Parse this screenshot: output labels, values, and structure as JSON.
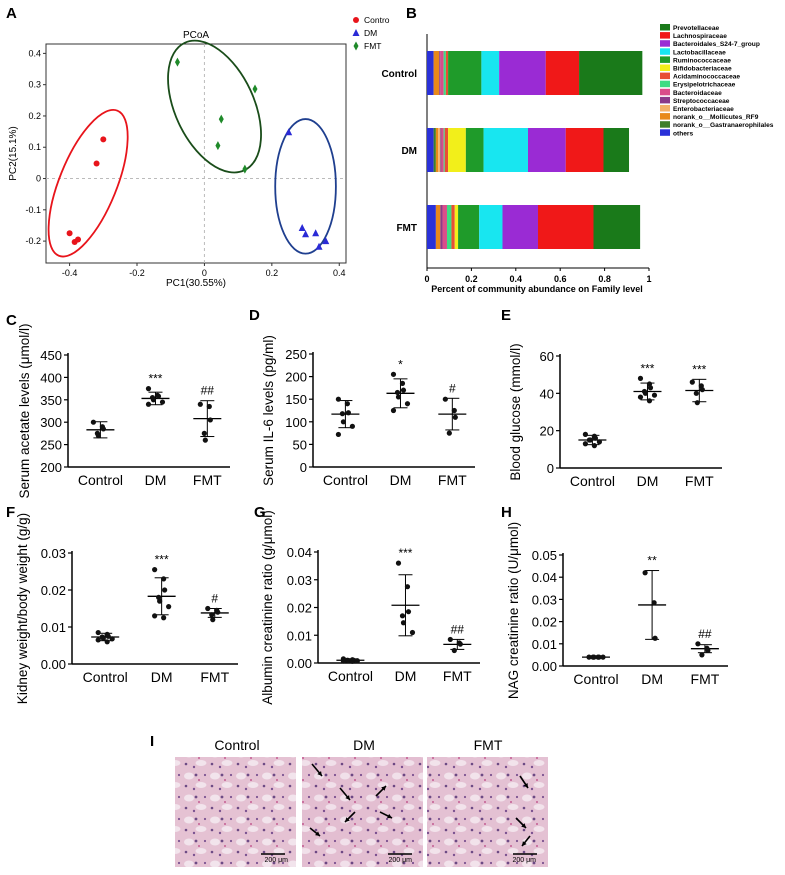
{
  "figure": {
    "panel_letters": [
      "A",
      "B",
      "C",
      "D",
      "E",
      "F",
      "G",
      "H",
      "I"
    ]
  },
  "colors": {
    "control": "#e8141b",
    "dm": "#2a2ad6",
    "fmt": "#1f8a2a",
    "ellipse_control": "#e8141b",
    "ellipse_dm": "#1f3f8f",
    "ellipse_fmt": "#1a4d1a",
    "point": "#111111"
  },
  "chart_data": [
    {
      "id": "A",
      "type": "scatter",
      "title": "PCoA",
      "xlabel": "PC1(30.55%)",
      "ylabel": "PC2(15.1%)",
      "xlim": [
        -0.47,
        0.42
      ],
      "ylim": [
        -0.27,
        0.43
      ],
      "xticks": [
        -0.4,
        -0.2,
        0,
        0.2,
        0.4
      ],
      "xtick_labels": [
        "-0.4",
        "-0.2",
        "0",
        "0.2",
        "0.4"
      ],
      "yticks": [
        -0.2,
        -0.1,
        0,
        0.1,
        0.2,
        0.3,
        0.4
      ],
      "ytick_labels": [
        "-0.2",
        "-0.1",
        "0",
        "0.1",
        "0.2",
        "0.3",
        "0.4"
      ],
      "legend": [
        {
          "name": "Contro",
          "marker": "circle",
          "color": "#e8141b"
        },
        {
          "name": "DM",
          "marker": "triangle",
          "color": "#2a2ad6"
        },
        {
          "name": "FMT",
          "marker": "diamond",
          "color": "#1f8a2a"
        }
      ],
      "series": [
        {
          "name": "Control",
          "marker": "circle",
          "color": "#e8141b",
          "points": [
            [
              -0.3,
              0.125
            ],
            [
              -0.32,
              0.048
            ],
            [
              -0.4,
              -0.175
            ],
            [
              -0.385,
              -0.203
            ],
            [
              -0.375,
              -0.195
            ]
          ],
          "ellipse": {
            "cx": -0.345,
            "cy": -0.015,
            "rx": 0.085,
            "ry": 0.25,
            "angle": 22
          }
        },
        {
          "name": "DM",
          "marker": "triangle",
          "color": "#2a2ad6",
          "points": [
            [
              0.25,
              0.148
            ],
            [
              0.29,
              -0.158
            ],
            [
              0.33,
              -0.175
            ],
            [
              0.36,
              -0.2
            ],
            [
              0.34,
              -0.218
            ],
            [
              0.3,
              -0.178
            ]
          ],
          "ellipse": {
            "cx": 0.3,
            "cy": -0.025,
            "rx": 0.09,
            "ry": 0.215,
            "angle": 0
          }
        },
        {
          "name": "FMT",
          "marker": "diamond",
          "color": "#1f8a2a",
          "points": [
            [
              -0.08,
              0.372
            ],
            [
              0.15,
              0.286
            ],
            [
              0.05,
              0.19
            ],
            [
              0.04,
              0.105
            ],
            [
              0.12,
              0.03
            ]
          ],
          "ellipse": {
            "cx": 0.03,
            "cy": 0.23,
            "rx": 0.117,
            "ry": 0.225,
            "angle": -25
          }
        }
      ]
    },
    {
      "id": "B",
      "type": "bar",
      "orientation": "horizontal",
      "stacked": true,
      "xlabel": "Percent of community abundance on Family level",
      "xlim": [
        0,
        1
      ],
      "xticks": [
        0,
        0.2,
        0.4,
        0.6,
        0.8,
        1
      ],
      "xtick_labels": [
        "0",
        "0.2",
        "0.4",
        "0.6",
        "0.8",
        "1"
      ],
      "categories": [
        "Control",
        "DM",
        "FMT"
      ],
      "series": [
        {
          "name": "others",
          "color": "#2a31d8",
          "values": [
            0.03,
            0.03,
            0.04
          ]
        },
        {
          "name": "norank_o__Gastranaerophilales",
          "color": "#3f7f2a",
          "values": [
            0,
            0.01,
            0
          ]
        },
        {
          "name": "norank_o__Mollicutes_RF9",
          "color": "#e8891a",
          "values": [
            0.025,
            0.01,
            0.02
          ]
        },
        {
          "name": "Enterobacteriaceae",
          "color": "#f4b26a",
          "values": [
            0,
            0.01,
            0
          ]
        },
        {
          "name": "Streptococcaceae",
          "color": "#8b3a8a",
          "values": [
            0.005,
            0.005,
            0.01
          ]
        },
        {
          "name": "Bacteroidaceae",
          "color": "#d94d8a",
          "values": [
            0.015,
            0.01,
            0.02
          ]
        },
        {
          "name": "Erysipelotrichaceae",
          "color": "#3ddc84",
          "values": [
            0.01,
            0.005,
            0.02
          ]
        },
        {
          "name": "Acidaminococcaceae",
          "color": "#e84f34",
          "values": [
            0.01,
            0.015,
            0.015
          ]
        },
        {
          "name": "Bifidobacteriaceae",
          "color": "#f2ef1a",
          "values": [
            0,
            0.08,
            0.015
          ]
        },
        {
          "name": "Ruminococcaceae",
          "color": "#1f9b2a",
          "values": [
            0.15,
            0.08,
            0.095
          ]
        },
        {
          "name": "Lactobacillaceae",
          "color": "#18e6f0",
          "values": [
            0.08,
            0.2,
            0.105
          ]
        },
        {
          "name": "Bacteroidales_S24-7_group",
          "color": "#9a2bd4",
          "values": [
            0.21,
            0.17,
            0.16
          ]
        },
        {
          "name": "Lachnospiraceae",
          "color": "#f01818",
          "values": [
            0.15,
            0.17,
            0.25
          ]
        },
        {
          "name": "Prevotellaceae",
          "color": "#1a7a1a",
          "values": [
            0.285,
            0.115,
            0.21
          ]
        }
      ],
      "legend_order": [
        "Prevotellaceae",
        "Lachnospiraceae",
        "Bacteroidales_S24-7_group",
        "Lactobacillaceae",
        "Ruminococcaceae",
        "Bifidobacteriaceae",
        "Acidaminococcaceae",
        "Erysipelotrichaceae",
        "Bacteroidaceae",
        "Streptococcaceae",
        "Enterobacteriaceae",
        "norank_o__Mollicutes_RF9",
        "norank_o__Gastranaerophilales",
        "others"
      ]
    },
    {
      "id": "C",
      "type": "scatter",
      "subtype": "dot-plot-mean-sd",
      "ylabel": "Serum acetate levels (μmol/l)",
      "ylim": [
        200,
        450
      ],
      "yticks": [
        200,
        250,
        300,
        350,
        400,
        450
      ],
      "ytick_labels": [
        "200",
        "250",
        "300",
        "350",
        "400",
        "450"
      ],
      "categories": [
        "Control",
        "DM",
        "FMT"
      ],
      "groups": [
        {
          "name": "Control",
          "mean": 283,
          "sd": 18,
          "sig": "",
          "points": [
            300,
            290,
            285,
            275,
            270
          ]
        },
        {
          "name": "DM",
          "mean": 353,
          "sd": 14,
          "sig": "***",
          "points": [
            375,
            360,
            358,
            355,
            350,
            345,
            340
          ]
        },
        {
          "name": "FMT",
          "mean": 308,
          "sd": 40,
          "sig": "##",
          "points": [
            340,
            335,
            305,
            275,
            260
          ]
        }
      ]
    },
    {
      "id": "D",
      "type": "scatter",
      "subtype": "dot-plot-mean-sd",
      "ylabel": "Serum IL-6 levels (pg/ml)",
      "ylim": [
        0,
        250
      ],
      "yticks": [
        0,
        50,
        100,
        150,
        200,
        250
      ],
      "ytick_labels": [
        "0",
        "50",
        "100",
        "150",
        "200",
        "250"
      ],
      "categories": [
        "Control",
        "DM",
        "FMT"
      ],
      "groups": [
        {
          "name": "Control",
          "mean": 117,
          "sd": 30,
          "sig": "",
          "points": [
            150,
            140,
            120,
            118,
            100,
            90,
            72
          ]
        },
        {
          "name": "DM",
          "mean": 163,
          "sd": 32,
          "sig": "*",
          "points": [
            205,
            185,
            170,
            165,
            155,
            140,
            125
          ]
        },
        {
          "name": "FMT",
          "mean": 117,
          "sd": 35,
          "sig": "#",
          "points": [
            150,
            125,
            110,
            75
          ]
        }
      ]
    },
    {
      "id": "E",
      "type": "scatter",
      "subtype": "dot-plot-mean-sd",
      "ylabel": "Blood glucose (mmol/l)",
      "ylim": [
        0,
        60
      ],
      "yticks": [
        0,
        20,
        40,
        60
      ],
      "ytick_labels": [
        "0",
        "20",
        "40",
        "60"
      ],
      "categories": [
        "Control",
        "DM",
        "FMT"
      ],
      "groups": [
        {
          "name": "Control",
          "mean": 15,
          "sd": 2.5,
          "sig": "",
          "points": [
            18,
            17,
            16,
            15,
            15,
            14,
            13,
            12
          ]
        },
        {
          "name": "DM",
          "mean": 41,
          "sd": 4.5,
          "sig": "***",
          "points": [
            48,
            45,
            43,
            41,
            40,
            39,
            38,
            36
          ]
        },
        {
          "name": "FMT",
          "mean": 41.5,
          "sd": 6,
          "sig": "***",
          "points": [
            46,
            44,
            42,
            40,
            35
          ]
        }
      ]
    },
    {
      "id": "F",
      "type": "scatter",
      "subtype": "dot-plot-mean-sd",
      "ylabel": "Kidney weight/body weight (g/g)",
      "ylim": [
        0,
        0.03
      ],
      "yticks": [
        0,
        0.01,
        0.02,
        0.03
      ],
      "ytick_labels": [
        "0.00",
        "0.01",
        "0.02",
        "0.03"
      ],
      "categories": [
        "Control",
        "DM",
        "FMT"
      ],
      "groups": [
        {
          "name": "Control",
          "mean": 0.0073,
          "sd": 0.001,
          "sig": "",
          "points": [
            0.0085,
            0.008,
            0.0075,
            0.0073,
            0.007,
            0.0068,
            0.0065,
            0.006
          ]
        },
        {
          "name": "DM",
          "mean": 0.0183,
          "sd": 0.005,
          "sig": "***",
          "points": [
            0.0255,
            0.023,
            0.02,
            0.018,
            0.017,
            0.0155,
            0.013,
            0.0125
          ]
        },
        {
          "name": "FMT",
          "mean": 0.0138,
          "sd": 0.0012,
          "sig": "#",
          "points": [
            0.015,
            0.0145,
            0.014,
            0.0133,
            0.012
          ]
        }
      ]
    },
    {
      "id": "G",
      "type": "scatter",
      "subtype": "dot-plot-mean-sd",
      "ylabel": "Albumin creatinine ratio (g/μmol)",
      "ylim": [
        0,
        0.04
      ],
      "yticks": [
        0,
        0.01,
        0.02,
        0.03,
        0.04
      ],
      "ytick_labels": [
        "0.00",
        "0.01",
        "0.02",
        "0.03",
        "0.04"
      ],
      "categories": [
        "Control",
        "DM",
        "FMT"
      ],
      "groups": [
        {
          "name": "Control",
          "mean": 0.001,
          "sd": 0.0005,
          "sig": "",
          "points": [
            0.0015,
            0.0012,
            0.001,
            0.001,
            0.0009,
            0.0008,
            0.0007,
            0.0006
          ]
        },
        {
          "name": "DM",
          "mean": 0.0208,
          "sd": 0.011,
          "sig": "***",
          "points": [
            0.036,
            0.0275,
            0.0185,
            0.017,
            0.0145,
            0.011
          ]
        },
        {
          "name": "FMT",
          "mean": 0.0067,
          "sd": 0.0018,
          "sig": "##",
          "points": [
            0.0085,
            0.0072,
            0.0068,
            0.0045
          ]
        }
      ]
    },
    {
      "id": "H",
      "type": "scatter",
      "subtype": "dot-plot-mean-sd",
      "ylabel": "NAG creatinine ratio (U/μmol)",
      "ylim": [
        0,
        0.05
      ],
      "yticks": [
        0,
        0.01,
        0.02,
        0.03,
        0.04,
        0.05
      ],
      "ytick_labels": [
        "0.00",
        "0.01",
        "0.02",
        "0.03",
        "0.04",
        "0.05"
      ],
      "categories": [
        "Control",
        "DM",
        "FMT"
      ],
      "groups": [
        {
          "name": "Control",
          "mean": 0.004,
          "sd": 0.0002,
          "sig": "",
          "points": [
            0.004,
            0.004,
            0.004,
            0.004,
            0.004,
            0.004
          ]
        },
        {
          "name": "DM",
          "mean": 0.0275,
          "sd": 0.0155,
          "sig": "**",
          "points": [
            0.042,
            0.0285,
            0.0125
          ]
        },
        {
          "name": "FMT",
          "mean": 0.0078,
          "sd": 0.0018,
          "sig": "##",
          "points": [
            0.01,
            0.008,
            0.007,
            0.005
          ]
        }
      ]
    }
  ],
  "histology": {
    "panels": [
      {
        "label": "Control",
        "scale": "200 μm",
        "arrows": 0
      },
      {
        "label": "DM",
        "scale": "200 μm",
        "arrows": 6
      },
      {
        "label": "FMT",
        "scale": "200 μm",
        "arrows": 3
      }
    ]
  }
}
